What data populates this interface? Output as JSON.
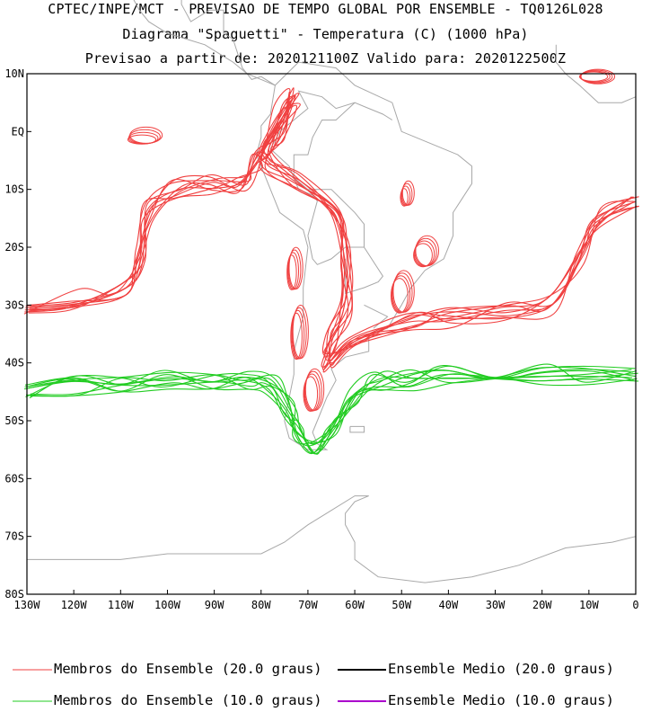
{
  "header": {
    "line1": "CPTEC/INPE/MCT - PREVISAO DE TEMPO GLOBAL POR ENSEMBLE - TQ0126L028",
    "line2": "Diagrama \"Spaguetti\" - Temperatura (C) (1000 hPa)",
    "line3": "Previsao a partir de: 2020121100Z  Valido para: 2020122500Z"
  },
  "colors": {
    "member_20": "#f04040",
    "member_10": "#22cc22",
    "mean_20": "#000000",
    "mean_10": "#aa00cc",
    "coast": "#a8a8a8"
  },
  "chart_data": {
    "type": "line",
    "title": "Diagrama \"Spaguetti\" - Temperatura (C) (1000 hPa)",
    "xlim": [
      -130,
      0
    ],
    "ylim": [
      -80,
      10
    ],
    "x_ticks": [
      "130W",
      "120W",
      "110W",
      "100W",
      "90W",
      "80W",
      "70W",
      "60W",
      "50W",
      "40W",
      "30W",
      "20W",
      "10W",
      "0"
    ],
    "y_ticks": [
      "10N",
      "EQ",
      "10S",
      "20S",
      "30S",
      "40S",
      "50S",
      "60S",
      "70S",
      "80S"
    ],
    "series": [
      {
        "name": "Membros do Ensemble (20.0 graus)",
        "color": "#f04040",
        "members": 10,
        "path": [
          [
            -130,
            -31
          ],
          [
            -120,
            -29
          ],
          [
            -110,
            -27
          ],
          [
            -106,
            -22
          ],
          [
            -104,
            -14
          ],
          [
            -98,
            -10
          ],
          [
            -90,
            -9
          ],
          [
            -84,
            -9
          ],
          [
            -81,
            -5
          ],
          [
            -79,
            -3
          ],
          [
            -76,
            3
          ],
          [
            -73,
            6
          ],
          [
            -76,
            0
          ],
          [
            -79,
            -5
          ],
          [
            -72,
            -9
          ],
          [
            -64,
            -13
          ],
          [
            -62,
            -22
          ],
          [
            -62,
            -30
          ],
          [
            -65,
            -36
          ],
          [
            -66,
            -40
          ],
          [
            -60,
            -37
          ],
          [
            -48,
            -33
          ],
          [
            -40,
            -32
          ],
          [
            -28,
            -31
          ],
          [
            -18,
            -30
          ],
          [
            -12,
            -22
          ],
          [
            -8,
            -15
          ],
          [
            0,
            -12
          ]
        ]
      },
      {
        "name": "Membros do Ensemble (10.0 graus)",
        "color": "#22cc22",
        "members": 10,
        "path": [
          [
            -130,
            -45
          ],
          [
            -120,
            -44
          ],
          [
            -110,
            -44
          ],
          [
            -100,
            -43
          ],
          [
            -90,
            -43
          ],
          [
            -83,
            -43
          ],
          [
            -78,
            -44
          ],
          [
            -74,
            -48
          ],
          [
            -72,
            -52
          ],
          [
            -69,
            -54
          ],
          [
            -65,
            -51
          ],
          [
            -60,
            -46
          ],
          [
            -55,
            -43
          ],
          [
            -48,
            -43
          ],
          [
            -40,
            -42
          ],
          [
            -30,
            -42
          ],
          [
            -20,
            -42
          ],
          [
            -10,
            -42
          ],
          [
            0,
            -42
          ]
        ]
      },
      {
        "name": "Ensemble Medio (20.0 graus)",
        "color": "#000000",
        "members": 0,
        "path": []
      },
      {
        "name": "Ensemble Medio (10.0 graus)",
        "color": "#aa00cc",
        "members": 0,
        "path": []
      }
    ]
  },
  "legend": {
    "member_20": "Membros do Ensemble (20.0 graus)",
    "mean_20": "Ensemble Medio (20.0 graus)",
    "member_10": "Membros do Ensemble (10.0 graus)",
    "mean_10": "Ensemble Medio (10.0 graus)"
  }
}
